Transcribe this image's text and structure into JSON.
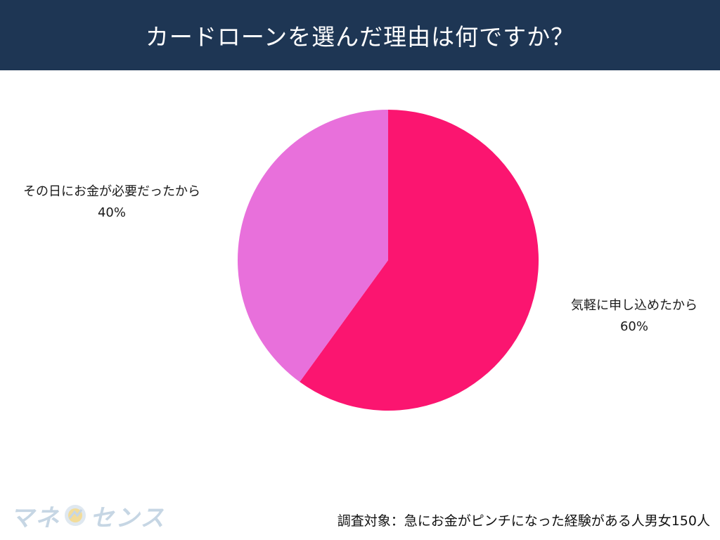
{
  "header": {
    "title": "カードローンを選んだ理由は何ですか？"
  },
  "chart_data": {
    "type": "pie",
    "slices": [
      {
        "label": "気軽に申し込めたから",
        "value": 60,
        "value_label": "60%",
        "color": "#fb1570"
      },
      {
        "label": "その日にお金が必要だったから",
        "value": 40,
        "value_label": "40%",
        "color": "#e870db"
      }
    ],
    "start_angle_deg": 0,
    "direction": "clockwise"
  },
  "logo": {
    "text_left": "マネ",
    "text_right": "センス"
  },
  "footnote": "調査対象：急にお金がピンチになった経験がある人男女150人"
}
